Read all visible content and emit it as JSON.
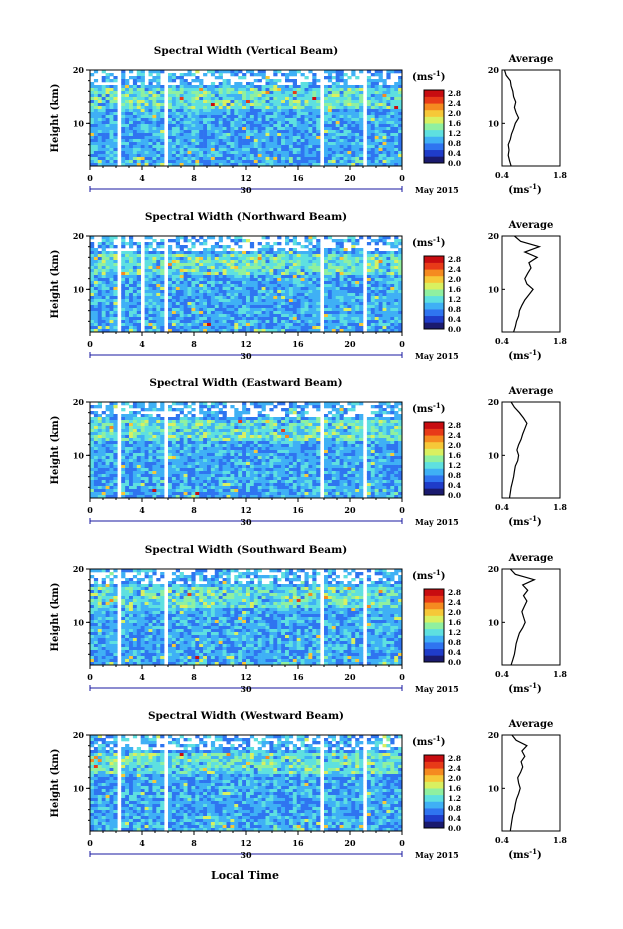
{
  "x_axis_label": "Local Time",
  "date_label": "May 2015",
  "day_label": "30",
  "unit_label": "(ms",
  "unit_exp": "-1",
  "average_title": "Average",
  "avg_xlabel": "(ms",
  "colorbar": {
    "ticks": [
      "2.8",
      "2.4",
      "2.0",
      "1.6",
      "1.2",
      "0.8",
      "0.4",
      "0.0"
    ],
    "colors": [
      "#1a1a6e",
      "#1f3cc9",
      "#2f74f0",
      "#3fb0f5",
      "#5ee0e0",
      "#8ff0a0",
      "#d9f060",
      "#f6c838",
      "#f58a20",
      "#e83a18",
      "#c80c10"
    ]
  },
  "chart_data": [
    {
      "type": "heatmap",
      "title": "Spectral Width (Vertical Beam)",
      "ylabel": "Height (km)",
      "xlim": [
        0,
        24
      ],
      "ylim": [
        2,
        20
      ],
      "x_ticks": [
        "0",
        "4",
        "8",
        "12",
        "16",
        "20",
        "0"
      ],
      "y_ticks": [
        "20",
        "10"
      ],
      "gaps_hours": [
        [
          2.0,
          2.4
        ],
        [
          5.6,
          6.0
        ],
        [
          17.6,
          18.0
        ],
        [
          21.0,
          21.4
        ]
      ],
      "average_profile": {
        "xlim": [
          0.4,
          1.8
        ],
        "x_ticks": [
          "0.4",
          "1.8"
        ],
        "y_ticks": [
          "20",
          "10"
        ],
        "height_km": [
          2,
          3,
          4,
          5,
          6,
          7,
          8,
          9,
          10,
          11,
          12,
          13,
          14,
          15,
          16,
          17,
          18,
          19,
          20
        ],
        "width_ms": [
          0.62,
          0.58,
          0.55,
          0.57,
          0.55,
          0.6,
          0.63,
          0.68,
          0.72,
          0.8,
          0.74,
          0.7,
          0.73,
          0.68,
          0.66,
          0.62,
          0.6,
          0.5,
          0.46
        ]
      }
    },
    {
      "type": "heatmap",
      "title": "Spectral Width (Northward Beam)",
      "ylabel": "Height (km)",
      "xlim": [
        0,
        24
      ],
      "ylim": [
        2,
        20
      ],
      "x_ticks": [
        "0",
        "4",
        "8",
        "12",
        "16",
        "20",
        "0"
      ],
      "y_ticks": [
        "20",
        "10"
      ],
      "gaps_hours": [
        [
          2.0,
          2.4
        ],
        [
          3.8,
          4.1
        ],
        [
          5.6,
          6.0
        ],
        [
          17.6,
          18.0
        ],
        [
          21.0,
          21.4
        ]
      ],
      "average_profile": {
        "xlim": [
          0.4,
          1.8
        ],
        "x_ticks": [
          "0.4",
          "1.8"
        ],
        "y_ticks": [
          "20",
          "10"
        ],
        "height_km": [
          2,
          3,
          4,
          5,
          6,
          7,
          8,
          9,
          10,
          11,
          12,
          13,
          14,
          15,
          16,
          17,
          18,
          19,
          20
        ],
        "width_ms": [
          0.68,
          0.72,
          0.75,
          0.8,
          0.82,
          0.88,
          0.95,
          1.05,
          1.15,
          1.0,
          0.95,
          1.02,
          1.1,
          1.05,
          1.25,
          0.95,
          1.3,
          0.85,
          0.7
        ]
      }
    },
    {
      "type": "heatmap",
      "title": "Spectral Width (Eastward Beam)",
      "ylabel": "Height (km)",
      "xlim": [
        0,
        24
      ],
      "ylim": [
        2,
        20
      ],
      "x_ticks": [
        "0",
        "4",
        "8",
        "12",
        "16",
        "20",
        "0"
      ],
      "y_ticks": [
        "20",
        "10"
      ],
      "gaps_hours": [
        [
          2.0,
          2.4
        ],
        [
          5.6,
          6.0
        ],
        [
          17.6,
          18.0
        ],
        [
          21.0,
          21.4
        ]
      ],
      "average_profile": {
        "xlim": [
          0.4,
          1.8
        ],
        "x_ticks": [
          "0.4",
          "1.8"
        ],
        "y_ticks": [
          "20",
          "10"
        ],
        "height_km": [
          2,
          3,
          4,
          5,
          6,
          7,
          8,
          9,
          10,
          11,
          12,
          13,
          14,
          15,
          16,
          17,
          18,
          19,
          20
        ],
        "width_ms": [
          0.58,
          0.6,
          0.62,
          0.65,
          0.68,
          0.7,
          0.72,
          0.78,
          0.8,
          0.76,
          0.8,
          0.86,
          0.9,
          0.95,
          1.0,
          0.92,
          0.82,
          0.7,
          0.62
        ]
      }
    },
    {
      "type": "heatmap",
      "title": "Spectral Width (Southward Beam)",
      "ylabel": "Height (km)",
      "xlim": [
        0,
        24
      ],
      "ylim": [
        2,
        20
      ],
      "x_ticks": [
        "0",
        "4",
        "8",
        "12",
        "16",
        "20",
        "0"
      ],
      "y_ticks": [
        "20",
        "10"
      ],
      "gaps_hours": [
        [
          2.0,
          2.4
        ],
        [
          5.6,
          6.0
        ],
        [
          17.6,
          18.0
        ],
        [
          21.0,
          21.4
        ]
      ],
      "average_profile": {
        "xlim": [
          0.4,
          1.8
        ],
        "x_ticks": [
          "0.4",
          "1.8"
        ],
        "y_ticks": [
          "20",
          "10"
        ],
        "height_km": [
          2,
          3,
          4,
          5,
          6,
          7,
          8,
          9,
          10,
          11,
          12,
          13,
          14,
          15,
          16,
          17,
          18,
          19,
          20
        ],
        "width_ms": [
          0.62,
          0.66,
          0.7,
          0.72,
          0.74,
          0.78,
          0.82,
          0.9,
          0.96,
          0.92,
          0.88,
          0.94,
          1.0,
          0.92,
          1.02,
          0.9,
          1.18,
          0.72,
          0.6
        ]
      }
    },
    {
      "type": "heatmap",
      "title": "Spectral Width (Westward Beam)",
      "ylabel": "Height (km)",
      "xlim": [
        0,
        24
      ],
      "ylim": [
        2,
        20
      ],
      "x_ticks": [
        "0",
        "4",
        "8",
        "12",
        "16",
        "20",
        "0"
      ],
      "y_ticks": [
        "20",
        "10"
      ],
      "gaps_hours": [
        [
          2.0,
          2.4
        ],
        [
          5.6,
          6.0
        ],
        [
          17.6,
          18.0
        ],
        [
          21.0,
          21.4
        ]
      ],
      "average_profile": {
        "xlim": [
          0.4,
          1.8
        ],
        "x_ticks": [
          "0.4",
          "1.8"
        ],
        "y_ticks": [
          "20",
          "10"
        ],
        "height_km": [
          2,
          3,
          4,
          5,
          6,
          7,
          8,
          9,
          10,
          11,
          12,
          13,
          14,
          15,
          16,
          17,
          18,
          19,
          20
        ],
        "width_ms": [
          0.6,
          0.62,
          0.64,
          0.66,
          0.7,
          0.72,
          0.75,
          0.8,
          0.84,
          0.8,
          0.78,
          0.85,
          0.9,
          0.86,
          0.95,
          0.88,
          1.0,
          0.74,
          0.64
        ]
      }
    }
  ]
}
